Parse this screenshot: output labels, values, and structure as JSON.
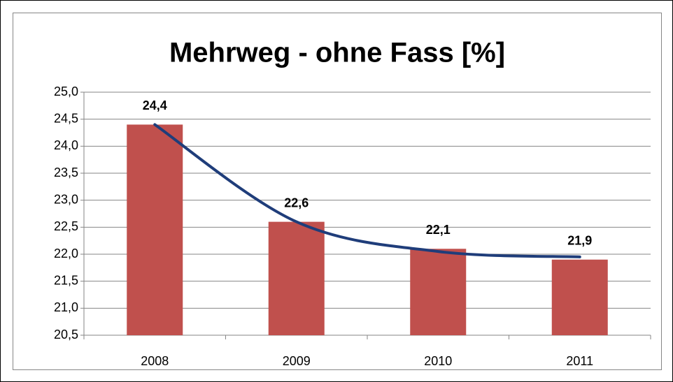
{
  "chart_data": {
    "type": "bar",
    "title": "Mehrweg - ohne Fass [%]",
    "categories": [
      "2008",
      "2009",
      "2010",
      "2011"
    ],
    "values": [
      24.4,
      22.6,
      22.1,
      21.9
    ],
    "value_labels": [
      "24,4",
      "22,6",
      "22,1",
      "21,9"
    ],
    "color": "#c0504d",
    "trendline": {
      "color": "#1f3d7a",
      "values": [
        24.4,
        22.6,
        22.05,
        21.95
      ]
    },
    "ylim": [
      20.5,
      25
    ],
    "yticks": [
      {
        "value": 20.5,
        "label": "20,5"
      },
      {
        "value": 21,
        "label": "21,0"
      },
      {
        "value": 21.5,
        "label": "21,5"
      },
      {
        "value": 22,
        "label": "22,0"
      },
      {
        "value": 22.5,
        "label": "22,5"
      },
      {
        "value": 23,
        "label": "23,0"
      },
      {
        "value": 23.5,
        "label": "23,5"
      },
      {
        "value": 24,
        "label": "24,0"
      },
      {
        "value": 24.5,
        "label": "24,5"
      },
      {
        "value": 25,
        "label": "25,0"
      }
    ],
    "grid": true
  }
}
